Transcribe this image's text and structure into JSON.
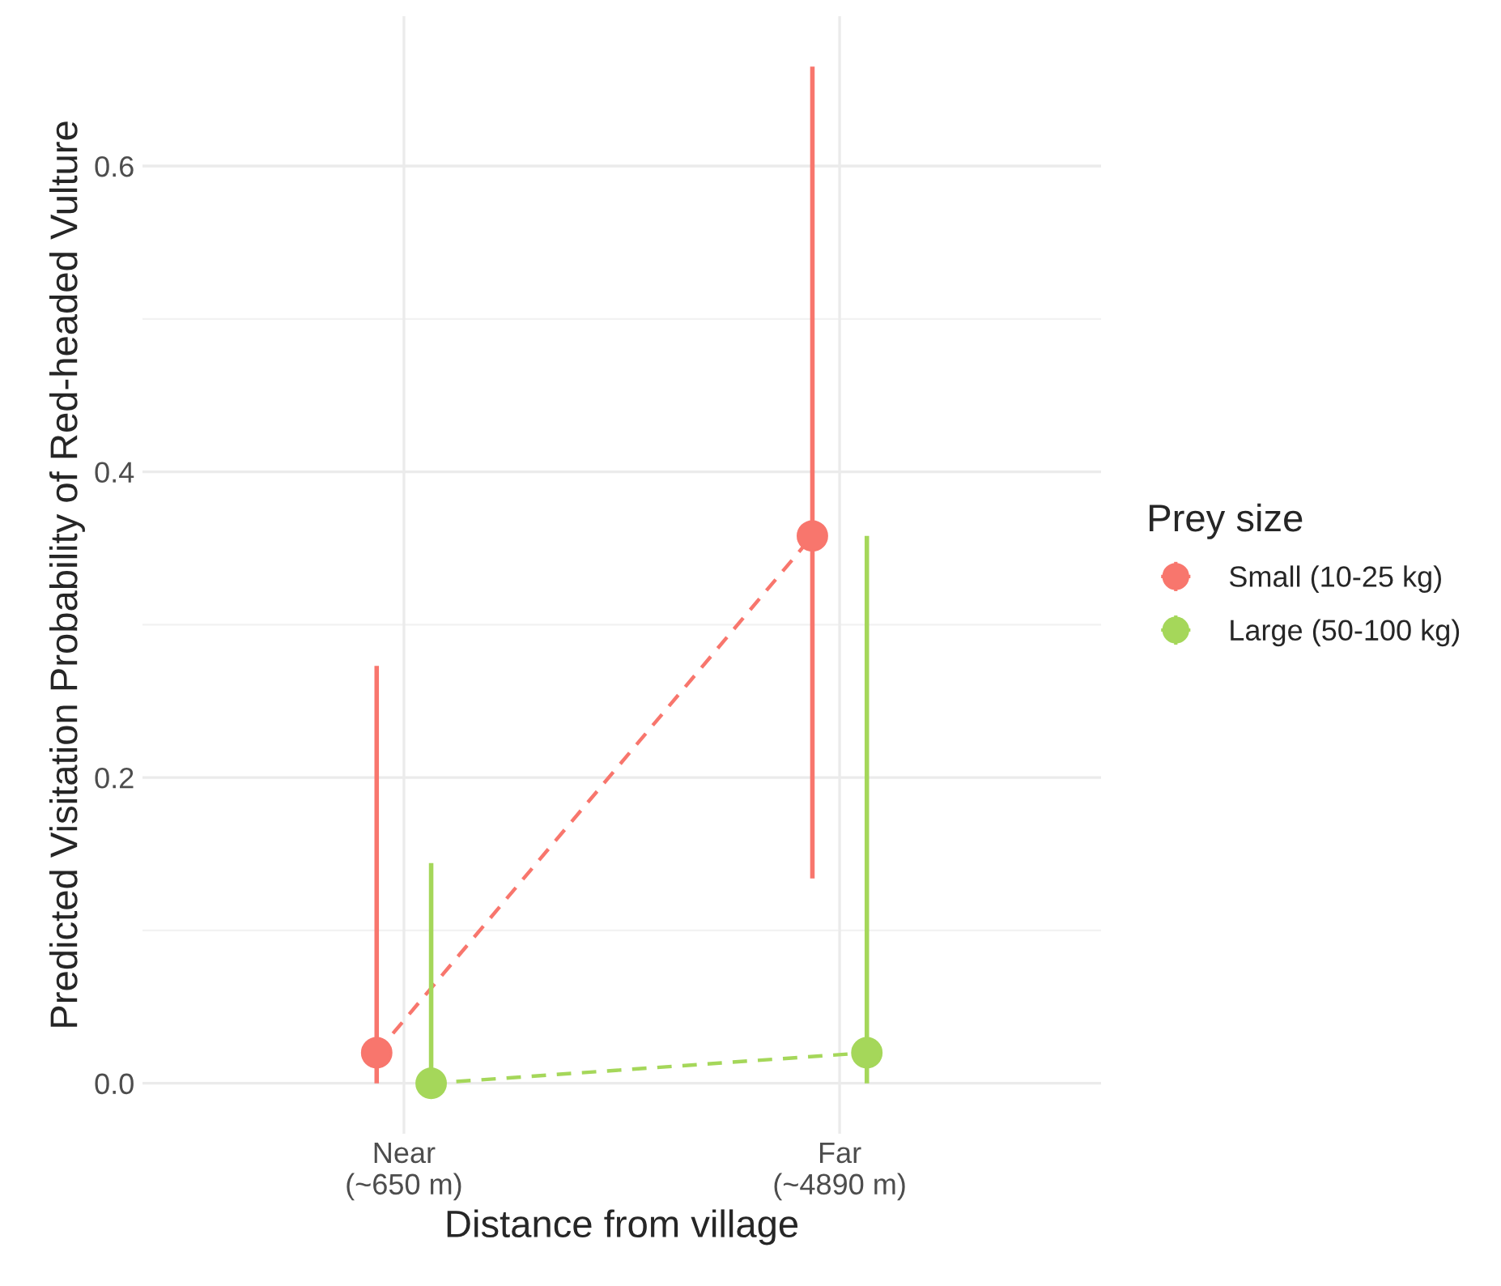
{
  "chart_data": {
    "type": "line",
    "xlabel": "Distance from village",
    "ylabel": "Predicted Visitation Probability of Red-headed Vulture",
    "legend_title": "Prey size",
    "categories": [
      "Near\n(~650 m)",
      "Far\n(~4890 m)"
    ],
    "series": [
      {
        "name": "Small (10-25 kg)",
        "color": "#f8766d",
        "values": [
          0.02,
          0.358
        ],
        "errors": [
          [
            0,
            0.273
          ],
          [
            0.134,
            0.665
          ]
        ]
      },
      {
        "name": "Large (50-100 kg)",
        "color": "#a5d75a",
        "values": [
          0.0,
          0.02
        ],
        "errors": [
          [
            0,
            0.144
          ],
          [
            0,
            0.358
          ]
        ]
      }
    ],
    "ylim": [
      -0.033,
      0.698
    ],
    "yticks": [
      {
        "value": 0,
        "label": "0.0"
      },
      0.2,
      0.4,
      0.6
    ],
    "grid": true,
    "legend": "right",
    "marker": "circle",
    "line_style": "dashed"
  }
}
